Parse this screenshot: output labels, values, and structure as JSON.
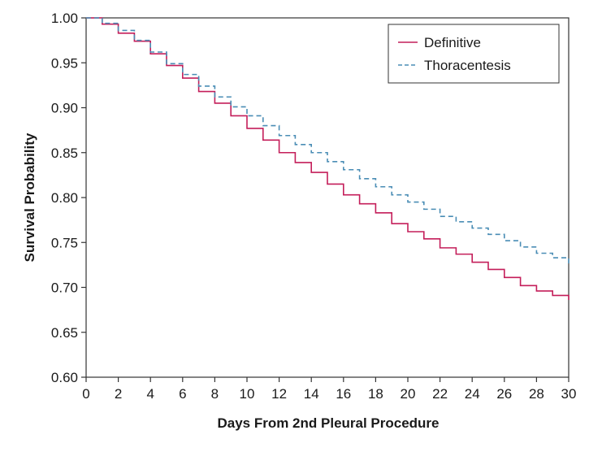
{
  "chart_data": {
    "type": "line",
    "style": "step",
    "title": "",
    "xlabel": "Days From 2nd Pleural Procedure",
    "ylabel": "Survival Probability",
    "xlim": [
      0,
      30
    ],
    "ylim": [
      0.6,
      1.0
    ],
    "x_ticks": [
      "0",
      "2",
      "4",
      "6",
      "8",
      "10",
      "12",
      "14",
      "16",
      "18",
      "20",
      "22",
      "24",
      "26",
      "28",
      "30"
    ],
    "y_ticks": [
      "0.60",
      "0.65",
      "0.70",
      "0.75",
      "0.80",
      "0.85",
      "0.90",
      "0.95",
      "1.00"
    ],
    "grid": false,
    "legend_position": "top-right",
    "x": [
      0,
      1,
      2,
      3,
      4,
      5,
      6,
      7,
      8,
      9,
      10,
      11,
      12,
      13,
      14,
      15,
      16,
      17,
      18,
      19,
      20,
      21,
      22,
      23,
      24,
      25,
      26,
      27,
      28,
      29,
      30
    ],
    "series": [
      {
        "name": "Definitive",
        "color": "#c41e5a",
        "line_style": "solid",
        "values": [
          1.0,
          0.993,
          0.983,
          0.974,
          0.96,
          0.947,
          0.933,
          0.918,
          0.905,
          0.891,
          0.877,
          0.864,
          0.85,
          0.839,
          0.828,
          0.815,
          0.803,
          0.793,
          0.783,
          0.771,
          0.762,
          0.754,
          0.744,
          0.737,
          0.728,
          0.72,
          0.711,
          0.702,
          0.696,
          0.691,
          0.686
        ]
      },
      {
        "name": "Thoracentesis",
        "color": "#4a8db5",
        "line_style": "dashed",
        "values": [
          1.0,
          0.994,
          0.986,
          0.975,
          0.962,
          0.949,
          0.937,
          0.924,
          0.912,
          0.901,
          0.891,
          0.88,
          0.869,
          0.859,
          0.85,
          0.84,
          0.831,
          0.821,
          0.812,
          0.803,
          0.795,
          0.787,
          0.779,
          0.773,
          0.766,
          0.759,
          0.752,
          0.745,
          0.738,
          0.733,
          0.725
        ]
      }
    ]
  }
}
